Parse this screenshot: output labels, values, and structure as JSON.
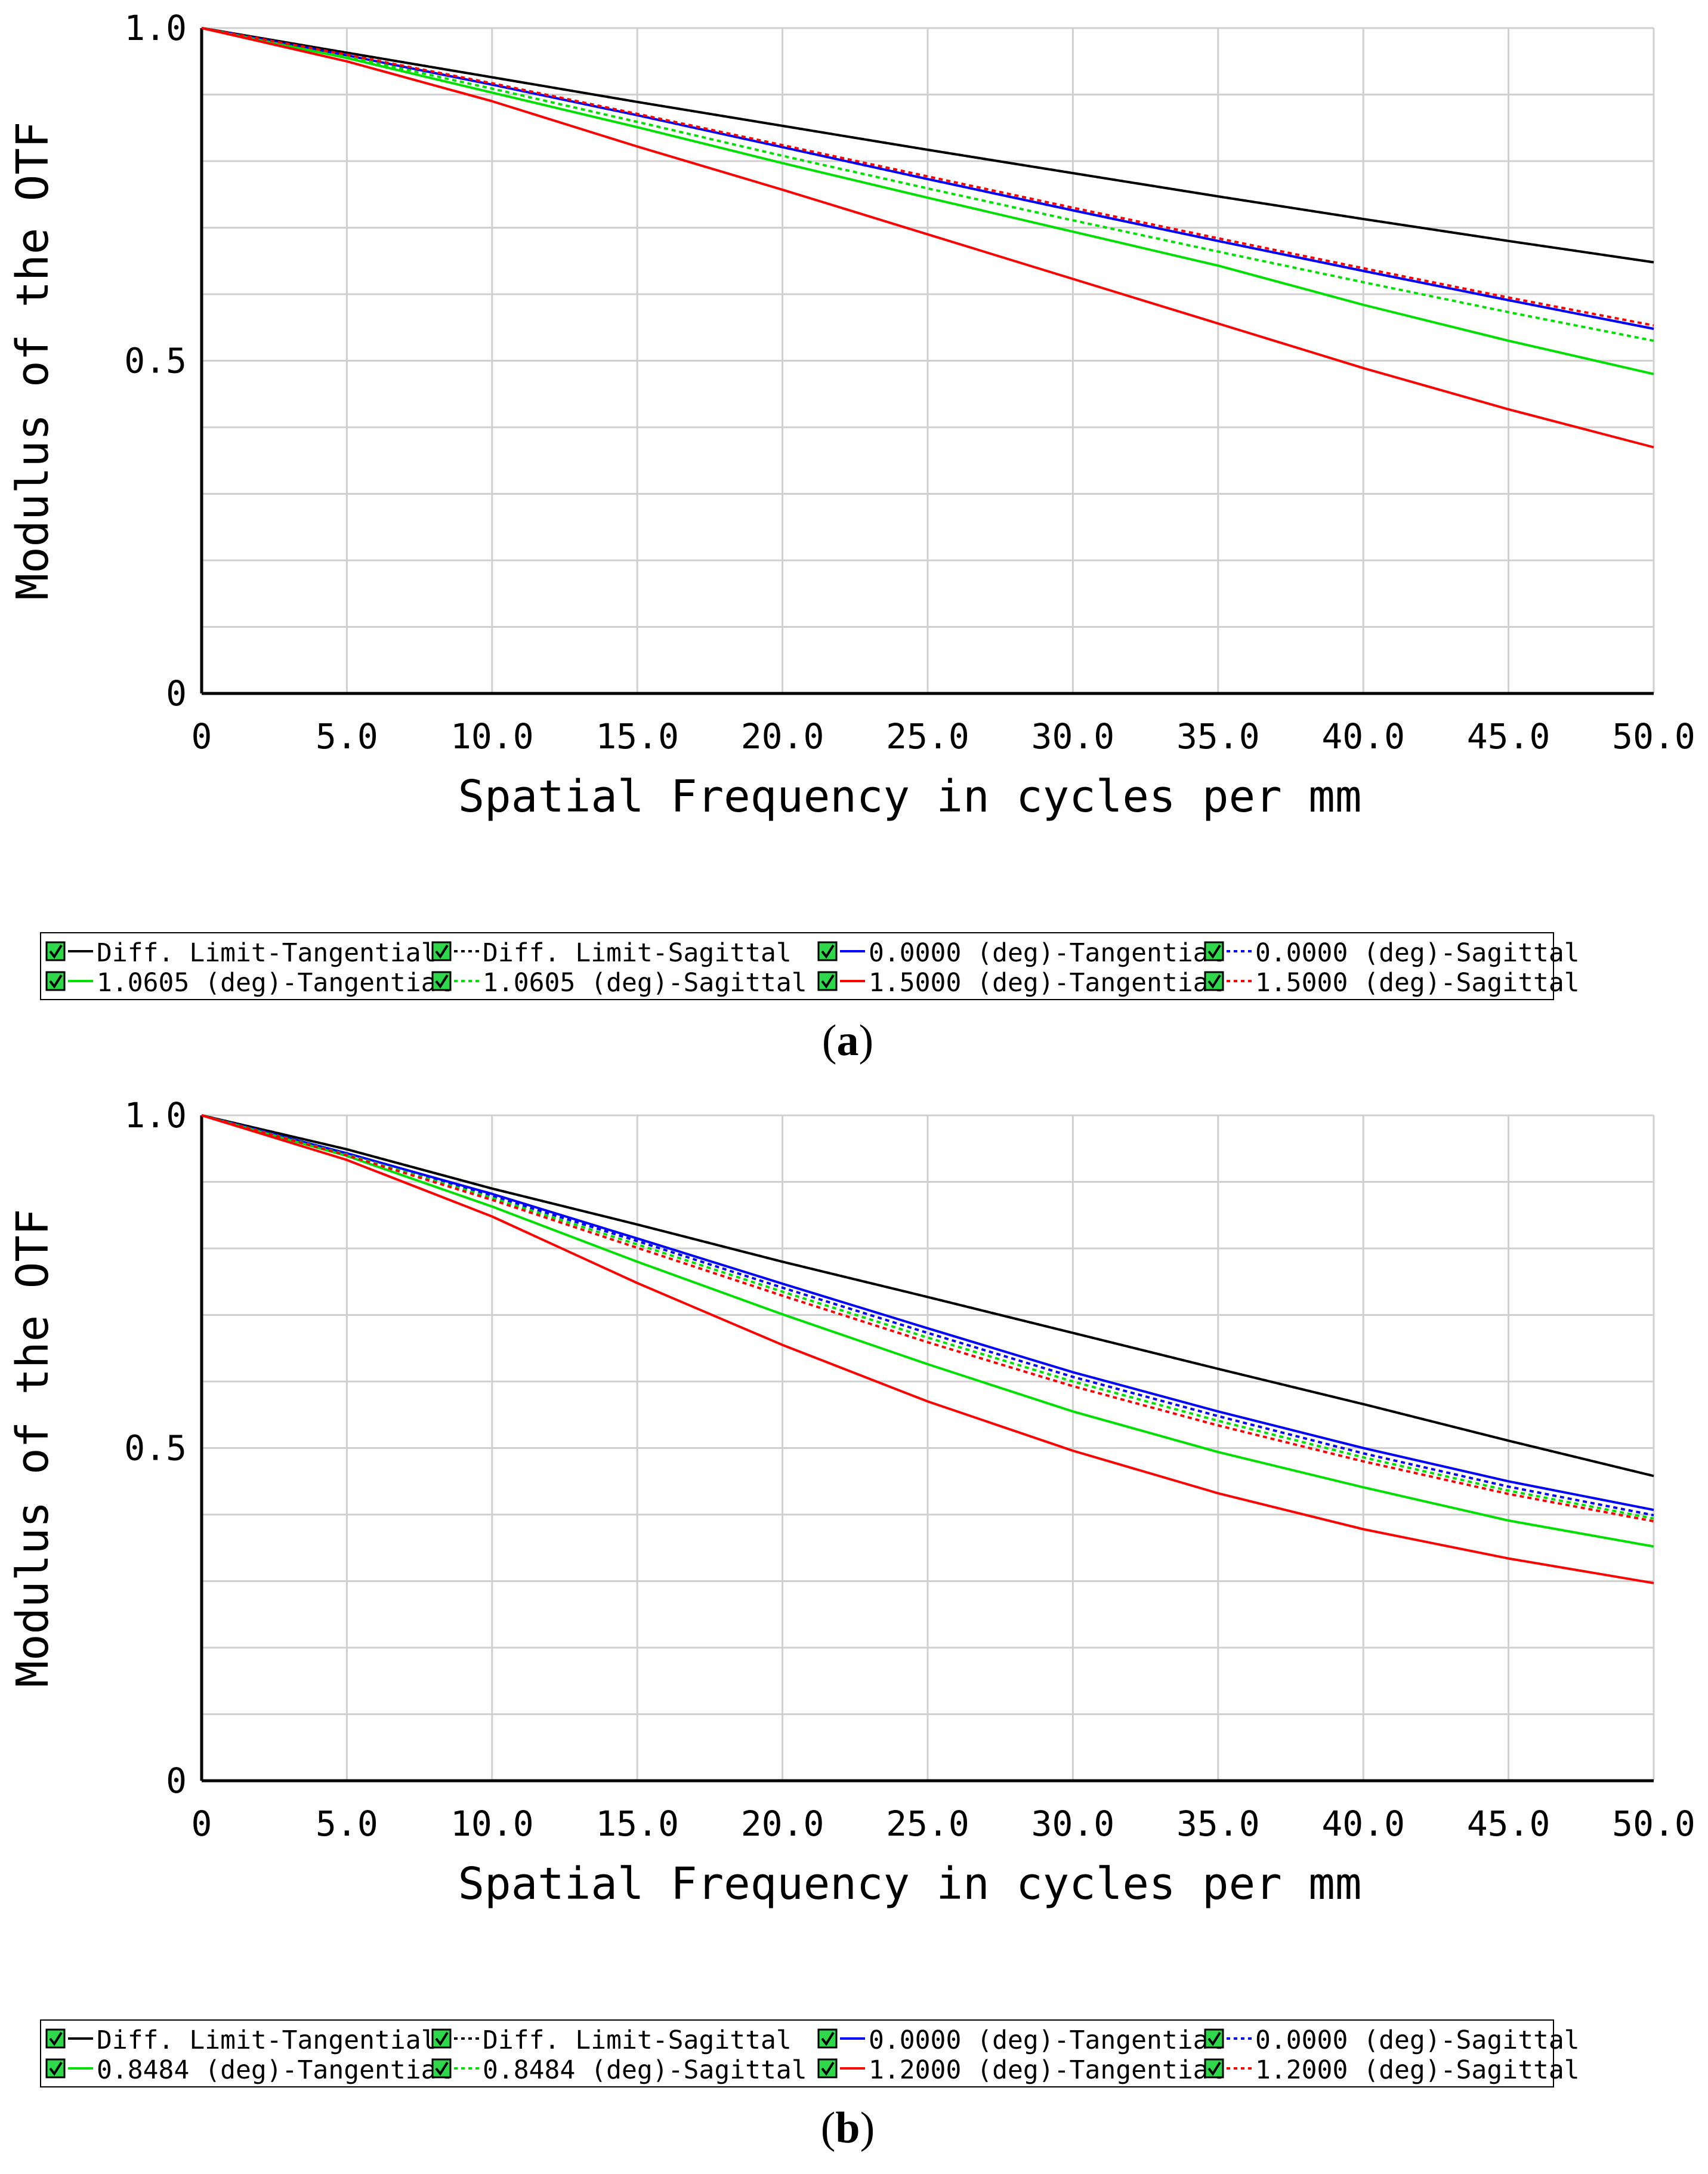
{
  "chart_data": [
    {
      "type": "line",
      "panel_label": "a",
      "xlabel": "Spatial Frequency in cycles per mm",
      "ylabel": "Modulus of the OTF",
      "xlim": [
        0,
        50
      ],
      "ylim": [
        0,
        1
      ],
      "x_ticks": [
        "0",
        "5.0",
        "10.0",
        "15.0",
        "20.0",
        "25.0",
        "30.0",
        "35.0",
        "40.0",
        "45.0",
        "50.0"
      ],
      "y_ticks": [
        "0",
        "0.5",
        "1.0"
      ],
      "x": [
        0,
        5,
        10,
        15,
        20,
        25,
        30,
        35,
        40,
        45,
        50
      ],
      "series": [
        {
          "name": "Diff. Limit-Tangential",
          "color": "#000000",
          "dash": false,
          "values": [
            1.0,
            0.963,
            0.926,
            0.889,
            0.853,
            0.817,
            0.782,
            0.747,
            0.713,
            0.68,
            0.648
          ]
        },
        {
          "name": "Diff. Limit-Sagittal",
          "color": "#000000",
          "dash": true,
          "values": [
            1.0,
            0.963,
            0.926,
            0.889,
            0.853,
            0.817,
            0.782,
            0.747,
            0.713,
            0.68,
            0.648
          ]
        },
        {
          "name": "0.0000 (deg)-Tangential",
          "color": "#0000ff",
          "dash": false,
          "values": [
            1.0,
            0.959,
            0.915,
            0.869,
            0.821,
            0.773,
            0.726,
            0.68,
            0.635,
            0.591,
            0.548
          ]
        },
        {
          "name": "0.0000 (deg)-Sagittal",
          "color": "#0000ff",
          "dash": true,
          "values": [
            1.0,
            0.959,
            0.915,
            0.869,
            0.821,
            0.773,
            0.726,
            0.68,
            0.635,
            0.591,
            0.548
          ]
        },
        {
          "name": "1.0605 (deg)-Tangential",
          "color": "#00e000",
          "dash": false,
          "values": [
            1.0,
            0.955,
            0.903,
            0.851,
            0.797,
            0.745,
            0.694,
            0.643,
            0.584,
            0.53,
            0.48
          ]
        },
        {
          "name": "1.0605 (deg)-Sagittal",
          "color": "#00e000",
          "dash": true,
          "values": [
            1.0,
            0.957,
            0.909,
            0.859,
            0.808,
            0.759,
            0.711,
            0.664,
            0.618,
            0.573,
            0.53
          ]
        },
        {
          "name": "1.5000 (deg)-Tangential",
          "color": "#ff0000",
          "dash": false,
          "values": [
            1.0,
            0.95,
            0.89,
            0.822,
            0.757,
            0.69,
            0.623,
            0.556,
            0.489,
            0.427,
            0.37
          ]
        },
        {
          "name": "1.5000 (deg)-Sagittal",
          "color": "#ff0000",
          "dash": true,
          "values": [
            1.0,
            0.96,
            0.917,
            0.871,
            0.824,
            0.777,
            0.73,
            0.684,
            0.639,
            0.595,
            0.553
          ]
        }
      ],
      "legend": [
        [
          "Diff. Limit-Tangential",
          "Diff. Limit-Sagittal",
          "0.0000 (deg)-Tangential",
          "0.0000 (deg)-Sagittal"
        ],
        [
          "1.0605 (deg)-Tangential",
          "1.0605 (deg)-Sagittal",
          "1.5000 (deg)-Tangential",
          "1.5000 (deg)-Sagittal"
        ]
      ]
    },
    {
      "type": "line",
      "panel_label": "b",
      "xlabel": "Spatial Frequency in cycles per mm",
      "ylabel": "Modulus of the OTF",
      "xlim": [
        0,
        50
      ],
      "ylim": [
        0,
        1
      ],
      "x_ticks": [
        "0",
        "5.0",
        "10.0",
        "15.0",
        "20.0",
        "25.0",
        "30.0",
        "35.0",
        "40.0",
        "45.0",
        "50.0"
      ],
      "y_ticks": [
        "0",
        "0.5",
        "1.0"
      ],
      "x": [
        0,
        5,
        10,
        15,
        20,
        25,
        30,
        35,
        40,
        45,
        50
      ],
      "series": [
        {
          "name": "Diff. Limit-Tangential",
          "color": "#000000",
          "dash": false,
          "values": [
            1.0,
            0.949,
            0.89,
            0.836,
            0.78,
            0.727,
            0.673,
            0.619,
            0.566,
            0.511,
            0.458
          ]
        },
        {
          "name": "Diff. Limit-Sagittal",
          "color": "#000000",
          "dash": true,
          "values": [
            1.0,
            0.949,
            0.89,
            0.836,
            0.78,
            0.727,
            0.673,
            0.619,
            0.566,
            0.511,
            0.458
          ]
        },
        {
          "name": "0.0000 (deg)-Tangential",
          "color": "#0000ff",
          "dash": false,
          "values": [
            1.0,
            0.943,
            0.882,
            0.815,
            0.747,
            0.68,
            0.614,
            0.555,
            0.5,
            0.45,
            0.407
          ]
        },
        {
          "name": "0.0000 (deg)-Sagittal",
          "color": "#0000ff",
          "dash": true,
          "values": [
            1.0,
            0.942,
            0.879,
            0.811,
            0.741,
            0.673,
            0.607,
            0.548,
            0.492,
            0.442,
            0.399
          ]
        },
        {
          "name": "0.8484 (deg)-Tangential",
          "color": "#00e000",
          "dash": false,
          "values": [
            1.0,
            0.939,
            0.863,
            0.78,
            0.701,
            0.626,
            0.555,
            0.494,
            0.441,
            0.391,
            0.352
          ]
        },
        {
          "name": "0.8484 (deg)-Sagittal",
          "color": "#00e000",
          "dash": true,
          "values": [
            1.0,
            0.941,
            0.876,
            0.806,
            0.735,
            0.666,
            0.6,
            0.541,
            0.486,
            0.436,
            0.394
          ]
        },
        {
          "name": "1.2000 (deg)-Tangential",
          "color": "#ff0000",
          "dash": false,
          "values": [
            1.0,
            0.933,
            0.848,
            0.748,
            0.655,
            0.57,
            0.496,
            0.432,
            0.378,
            0.334,
            0.297
          ]
        },
        {
          "name": "1.2000 (deg)-Sagittal",
          "color": "#ff0000",
          "dash": true,
          "values": [
            1.0,
            0.94,
            0.873,
            0.801,
            0.729,
            0.659,
            0.593,
            0.534,
            0.48,
            0.431,
            0.39
          ]
        }
      ],
      "legend": [
        [
          "Diff. Limit-Tangential",
          "Diff. Limit-Sagittal",
          "0.0000 (deg)-Tangential",
          "0.0000 (deg)-Sagittal"
        ],
        [
          "0.8484 (deg)-Tangential",
          "0.8484 (deg)-Sagittal",
          "1.2000 (deg)-Tangential",
          "1.2000 (deg)-Sagittal"
        ]
      ]
    }
  ]
}
